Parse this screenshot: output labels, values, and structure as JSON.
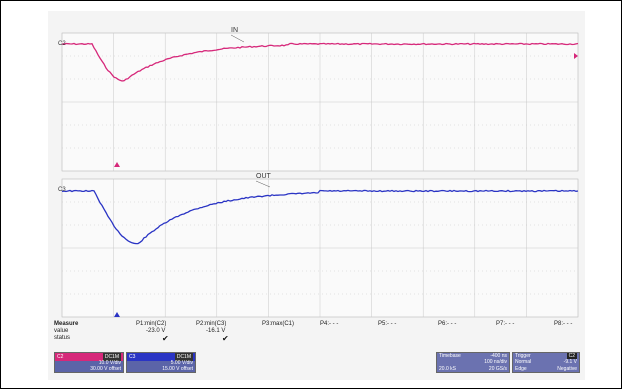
{
  "caption": "",
  "channels": {
    "top_label": "C2",
    "bottom_label": "C3",
    "ch2_color": "#d6287a",
    "ch3_color": "#2a34c4"
  },
  "trace_labels": {
    "in": "IN",
    "out": "OUT"
  },
  "measure": {
    "title": "Measure",
    "row_value": "value",
    "row_status": "status",
    "p1_name": "P1:min(C2)",
    "p1_value": "-23.0 V",
    "p2_name": "P2:min(C3)",
    "p2_value": "-16.1 V",
    "p3_name": "P3:max(C1)",
    "p4_name": "P4:- - -",
    "p5_name": "P5:- - -",
    "p6_name": "P6:- - -",
    "p7_name": "P7:- - -",
    "p8_name": "P8:- - -",
    "check": "✔"
  },
  "ch2_box": {
    "name": "C2",
    "coupling": "DC1M",
    "vdiv": "10.0 V/div",
    "offset": "30.00 V offset"
  },
  "ch3_box": {
    "name": "C3",
    "coupling": "DC1M",
    "vdiv": "5.00 V/div",
    "offset": "15.00 V offset"
  },
  "timebase": {
    "title": "Timebase",
    "delay": "-400 ns",
    "rate_left": "100 ns/div",
    "sample_left": "20.0 kS",
    "sample_right": "20 GS/s"
  },
  "trigger": {
    "title": "Trigger",
    "icon": "C2",
    "mode": "Normal",
    "level": "-9.1 V",
    "type": "Edge",
    "slope": "Negative"
  }
}
